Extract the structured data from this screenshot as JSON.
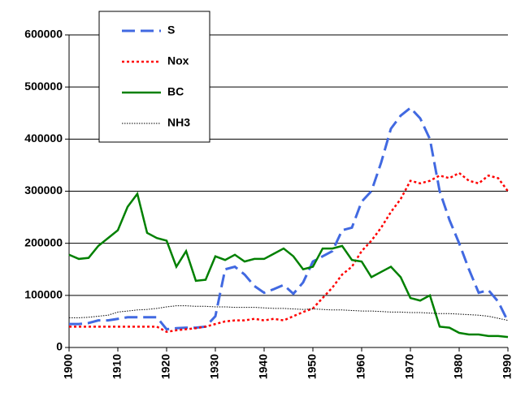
{
  "chart_data": {
    "type": "line",
    "x": [
      1900,
      1902,
      1904,
      1906,
      1908,
      1910,
      1912,
      1914,
      1916,
      1918,
      1920,
      1922,
      1924,
      1926,
      1928,
      1930,
      1932,
      1934,
      1936,
      1938,
      1940,
      1942,
      1944,
      1946,
      1948,
      1950,
      1952,
      1954,
      1956,
      1958,
      1960,
      1962,
      1964,
      1966,
      1968,
      1970,
      1972,
      1974,
      1976,
      1978,
      1980,
      1982,
      1984,
      1986,
      1988,
      1990
    ],
    "series": [
      {
        "name": "S",
        "color": "#4169e1",
        "style": "dashed",
        "values": [
          45000,
          45000,
          47000,
          52000,
          52000,
          55000,
          58000,
          58000,
          58000,
          58000,
          35000,
          37000,
          38000,
          38000,
          40000,
          60000,
          150000,
          155000,
          140000,
          118000,
          105000,
          112000,
          120000,
          103000,
          125000,
          165000,
          175000,
          185000,
          225000,
          230000,
          280000,
          300000,
          355000,
          420000,
          445000,
          460000,
          440000,
          400000,
          300000,
          245000,
          200000,
          150000,
          105000,
          110000,
          88000,
          50000
        ]
      },
      {
        "name": "Nox",
        "color": "#ff0000",
        "style": "dotted",
        "values": [
          40000,
          40000,
          40000,
          40000,
          40000,
          40000,
          40000,
          40000,
          40000,
          40000,
          30000,
          33000,
          35000,
          37000,
          40000,
          45000,
          50000,
          52000,
          52000,
          55000,
          52000,
          55000,
          52000,
          60000,
          68000,
          75000,
          95000,
          115000,
          140000,
          155000,
          185000,
          205000,
          230000,
          260000,
          285000,
          320000,
          315000,
          320000,
          330000,
          325000,
          335000,
          320000,
          315000,
          330000,
          325000,
          300000
        ]
      },
      {
        "name": "BC",
        "color": "#008000",
        "style": "solid",
        "values": [
          178000,
          170000,
          172000,
          195000,
          210000,
          225000,
          270000,
          295000,
          220000,
          210000,
          205000,
          155000,
          185000,
          128000,
          130000,
          175000,
          168000,
          178000,
          165000,
          170000,
          170000,
          180000,
          190000,
          175000,
          150000,
          155000,
          190000,
          190000,
          195000,
          168000,
          165000,
          135000,
          145000,
          155000,
          135000,
          95000,
          90000,
          100000,
          40000,
          38000,
          28000,
          25000,
          25000,
          22000,
          22000,
          20000
        ]
      },
      {
        "name": "NH3",
        "color": "#000000",
        "style": "fine-dotted",
        "values": [
          57000,
          57000,
          58000,
          60000,
          62000,
          68000,
          70000,
          72000,
          73000,
          75000,
          78000,
          80000,
          80000,
          79000,
          79000,
          78000,
          78000,
          77000,
          77000,
          77000,
          76000,
          75000,
          75000,
          74000,
          73000,
          74000,
          73000,
          72000,
          72000,
          71000,
          70000,
          70000,
          69000,
          68000,
          68000,
          67000,
          67000,
          66000,
          65000,
          65000,
          64000,
          63000,
          62000,
          60000,
          56000,
          52000
        ]
      }
    ],
    "xlim": [
      1900,
      1990
    ],
    "xticks": [
      1900,
      1910,
      1920,
      1930,
      1940,
      1950,
      1960,
      1970,
      1980,
      1990
    ],
    "ylim": [
      0,
      600000
    ],
    "yticks": [
      0,
      100000,
      200000,
      300000,
      400000,
      500000,
      600000
    ],
    "grid": true,
    "legend": "upper-left"
  }
}
